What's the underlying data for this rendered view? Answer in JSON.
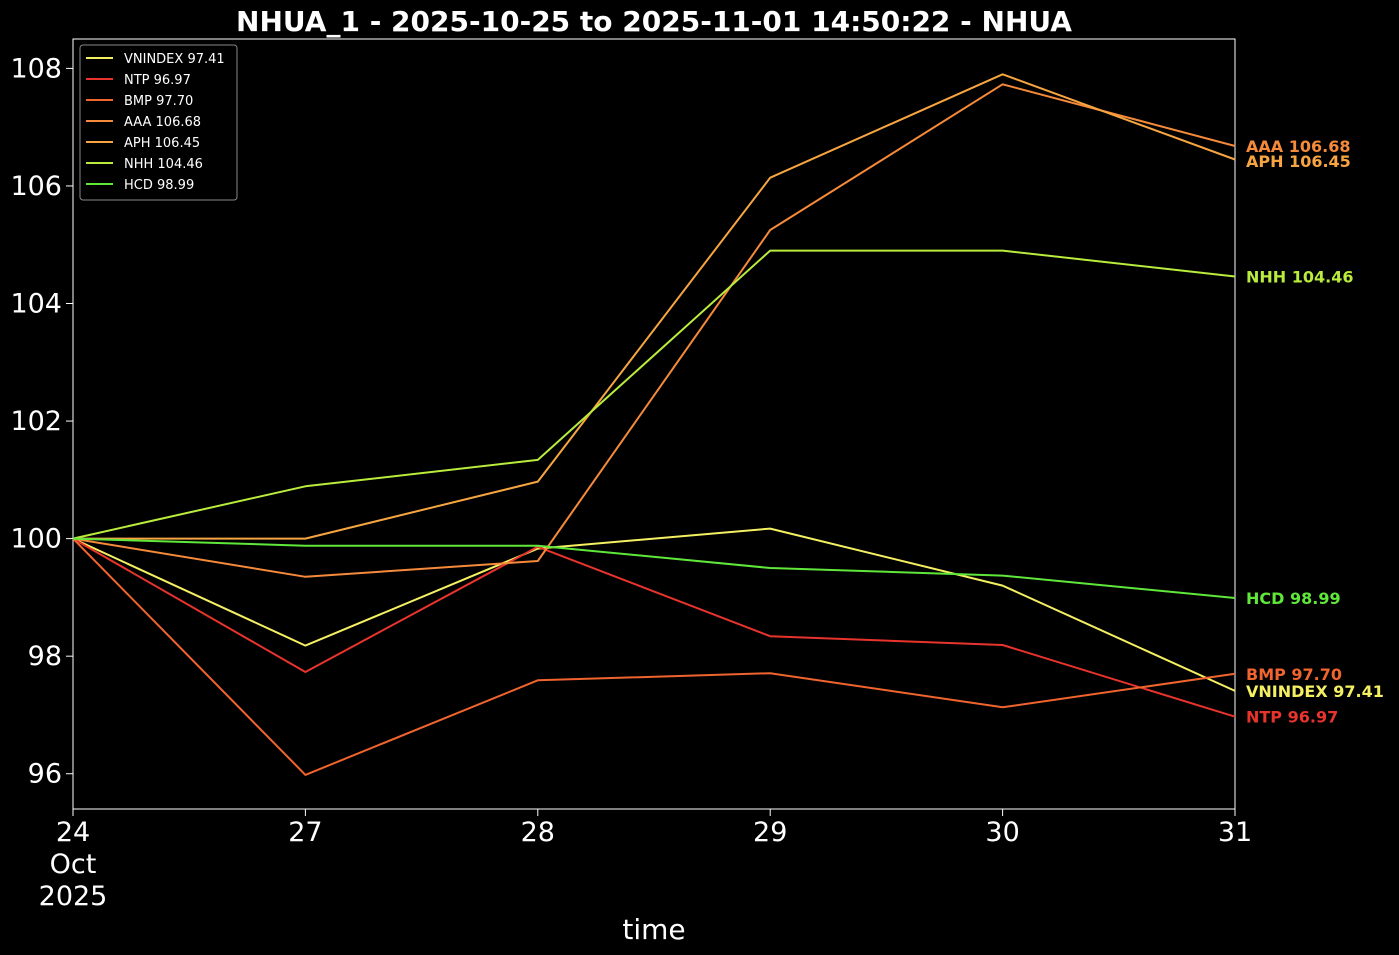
{
  "chart_data": {
    "type": "line",
    "title": "NHUA_1 - 2025-10-25 to 2025-11-01 14:50:22 - NHUA",
    "xlabel": "time",
    "ylabel": "",
    "x": [
      "2025-10-24",
      "2025-10-27",
      "2025-10-28",
      "2025-10-29",
      "2025-10-30",
      "2025-10-31"
    ],
    "x_tick_labels": [
      [
        "24",
        "Oct",
        "2025"
      ],
      [
        "27"
      ],
      [
        "28"
      ],
      [
        "29"
      ],
      [
        "30"
      ],
      [
        "31"
      ]
    ],
    "ylim": [
      95.4,
      108.5
    ],
    "y_ticks": [
      96,
      98,
      100,
      102,
      104,
      106,
      108
    ],
    "grid": false,
    "legend_position": "top-left",
    "background": "#000000",
    "series": [
      {
        "name": "VNINDEX",
        "legend": "VNINDEX 97.41",
        "end_label": "VNINDEX 97.41",
        "color": "#f4f062",
        "values": [
          100.0,
          98.18,
          99.83,
          100.17,
          99.2,
          97.41
        ]
      },
      {
        "name": "NTP",
        "legend": "NTP 96.97",
        "end_label": "NTP 96.97",
        "color": "#e8342c",
        "values": [
          100.0,
          97.73,
          99.86,
          98.34,
          98.19,
          96.97
        ]
      },
      {
        "name": "BMP",
        "legend": "BMP 97.70",
        "end_label": "BMP 97.70",
        "color": "#f0642e",
        "values": [
          100.0,
          95.98,
          97.59,
          97.71,
          97.13,
          97.7
        ]
      },
      {
        "name": "AAA",
        "legend": "AAA 106.68",
        "end_label": "AAA 106.68",
        "color": "#f58a3a",
        "values": [
          100.0,
          99.35,
          99.62,
          105.25,
          107.73,
          106.68
        ]
      },
      {
        "name": "APH",
        "legend": "APH 106.45",
        "end_label": "APH 106.45",
        "color": "#f7a540",
        "values": [
          100.0,
          100.0,
          100.97,
          106.14,
          107.9,
          106.45
        ]
      },
      {
        "name": "NHH",
        "legend": "NHH 104.46",
        "end_label": "NHH 104.46",
        "color": "#b9ec3c",
        "values": [
          100.0,
          100.89,
          101.34,
          104.9,
          104.9,
          104.46
        ]
      },
      {
        "name": "HCD",
        "legend": "HCD 98.99",
        "end_label": "HCD 98.99",
        "color": "#5fe83a",
        "values": [
          100.0,
          99.88,
          99.88,
          99.5,
          99.37,
          98.99
        ]
      }
    ]
  }
}
